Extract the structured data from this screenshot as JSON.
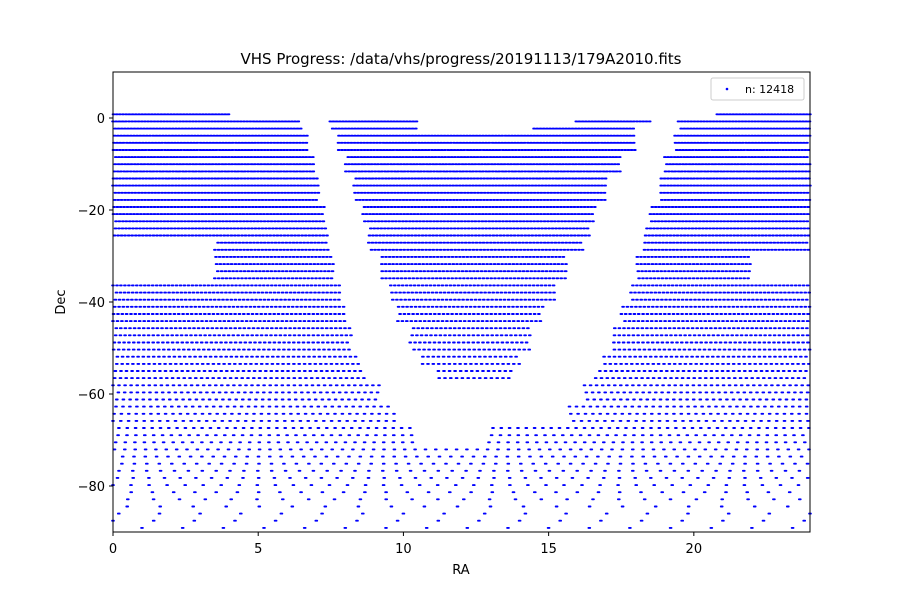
{
  "chart_data": {
    "type": "scatter",
    "title": "VHS Progress: /data/vhs/progress/20191113/179A2010.fits",
    "xlabel": "RA",
    "ylabel": "Dec",
    "xlim": [
      0,
      24
    ],
    "ylim": [
      -90,
      10
    ],
    "xticks": [
      0,
      5,
      10,
      15,
      20
    ],
    "yticks": [
      0,
      -20,
      -40,
      -60,
      -80
    ],
    "grid": false,
    "legend_position": "top-right",
    "series": [
      {
        "name": "n: 12418",
        "color": "#0000ff",
        "marker": "point",
        "count": 12418,
        "dec_bands": [
          {
            "dec": 0.8,
            "ra": [
              [
                0,
                4
              ],
              [
                20.7,
                24
              ]
            ]
          },
          {
            "dec": -0.5,
            "ra": [
              [
                0,
                6.4
              ],
              [
                7.4,
                10.5
              ],
              [
                15.9,
                18.5
              ],
              [
                19.4,
                24
              ]
            ]
          },
          {
            "dec": -2,
            "ra": [
              [
                0,
                6.5
              ],
              [
                7.5,
                10.5
              ],
              [
                14.5,
                18
              ],
              [
                19.5,
                24
              ]
            ]
          },
          {
            "dec": -5,
            "ra": [
              [
                0,
                6.7
              ],
              [
                7.7,
                18
              ],
              [
                19.3,
                24
              ]
            ]
          },
          {
            "dec": -10,
            "ra": [
              [
                0,
                6.9
              ],
              [
                8,
                17.5
              ],
              [
                19,
                24
              ]
            ]
          },
          {
            "dec": -16,
            "ra": [
              [
                0,
                7.1
              ],
              [
                8.3,
                17
              ],
              [
                18.8,
                24
              ]
            ]
          },
          {
            "dec": -21,
            "ra": [
              [
                0,
                7.3
              ],
              [
                8.6,
                16.6
              ],
              [
                18.5,
                24
              ]
            ]
          },
          {
            "dec": -25,
            "ra": [
              [
                0,
                7.4
              ],
              [
                8.8,
                16.4
              ],
              [
                18.3,
                24
              ]
            ]
          },
          {
            "dec": -27,
            "ra": [
              [
                3.5,
                7.4
              ],
              [
                8.8,
                16.2
              ],
              [
                18.2,
                24
              ]
            ]
          },
          {
            "dec": -33,
            "ra": [
              [
                3.5,
                7.6
              ],
              [
                9.2,
                15.6
              ],
              [
                18,
                22
              ]
            ]
          },
          {
            "dec": -38,
            "ra": [
              [
                0,
                7.8
              ],
              [
                9.5,
                15.2
              ],
              [
                17.8,
                24
              ]
            ]
          },
          {
            "dec": -43,
            "ra": [
              [
                0,
                8
              ],
              [
                9.8,
                14.8
              ],
              [
                17.5,
                24
              ]
            ]
          },
          {
            "dec": -48,
            "ra": [
              [
                0,
                8.2
              ],
              [
                10.2,
                14.4
              ],
              [
                17.2,
                24
              ]
            ]
          },
          {
            "dec": -53,
            "ra": [
              [
                0,
                8.5
              ],
              [
                10.6,
                14
              ],
              [
                16.9,
                24
              ]
            ]
          },
          {
            "dec": -56,
            "ra": [
              [
                0,
                8.7
              ],
              [
                11.2,
                13.8
              ],
              [
                16.6,
                24
              ]
            ]
          },
          {
            "dec": -60,
            "ra": [
              [
                0,
                9.2
              ],
              [
                16.2,
                24
              ]
            ]
          },
          {
            "dec": -64,
            "ra": [
              [
                0,
                9.7
              ],
              [
                15.6,
                24
              ]
            ]
          },
          {
            "dec": -68,
            "ra": [
              [
                0,
                10.5
              ],
              [
                12.8,
                24
              ]
            ]
          },
          {
            "dec": -73,
            "ra": [
              [
                0,
                24
              ]
            ]
          },
          {
            "dec": -80,
            "ra": [
              [
                0,
                24
              ]
            ]
          },
          {
            "dec": -86,
            "ra": [
              [
                0,
                24
              ]
            ]
          }
        ]
      }
    ]
  }
}
